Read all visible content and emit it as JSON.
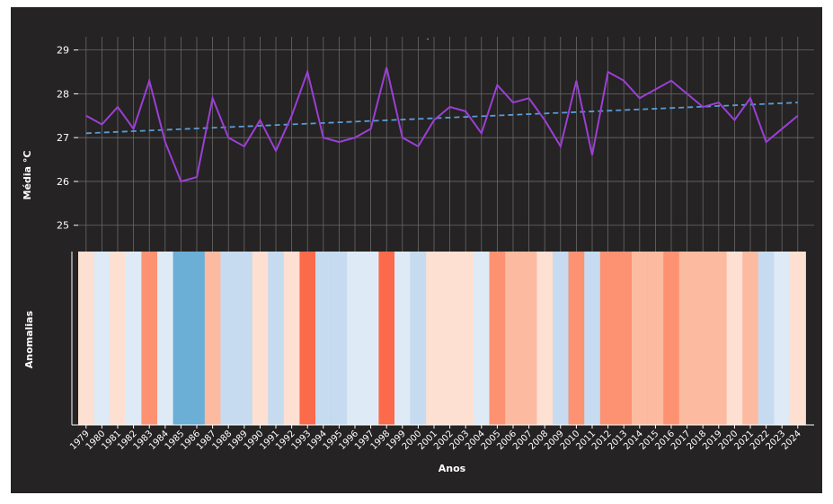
{
  "chart_data": {
    "type": "line",
    "title": ".",
    "y_label": "Média °C",
    "stripes_label": "Anomalias",
    "x_label": "Anos",
    "categories": [
      "1979",
      "1980",
      "1981",
      "1982",
      "1983",
      "1984",
      "1985",
      "1986",
      "1987",
      "1988",
      "1989",
      "1990",
      "1991",
      "1992",
      "1993",
      "1994",
      "1995",
      "1996",
      "1997",
      "1998",
      "1999",
      "2000",
      "2001",
      "2002",
      "2003",
      "2004",
      "2005",
      "2006",
      "2007",
      "2008",
      "2009",
      "2010",
      "2011",
      "2012",
      "2013",
      "2014",
      "2015",
      "2016",
      "2017",
      "2018",
      "2019",
      "2020",
      "2021",
      "2022",
      "2023",
      "2024"
    ],
    "series": [
      {
        "name": "Média",
        "color": "#9b3fd6",
        "values": [
          27.5,
          27.3,
          27.7,
          27.2,
          28.3,
          26.9,
          26.0,
          26.1,
          27.9,
          27.0,
          26.8,
          27.4,
          26.7,
          27.5,
          28.5,
          27.0,
          26.9,
          27.0,
          27.2,
          28.6,
          27.0,
          26.8,
          27.4,
          27.7,
          27.6,
          27.1,
          28.2,
          27.8,
          27.9,
          27.4,
          26.8,
          28.3,
          26.6,
          28.5,
          28.3,
          27.9,
          28.1,
          28.3,
          28.0,
          27.7,
          27.8,
          27.4,
          27.9,
          26.9,
          27.2,
          27.5
        ]
      }
    ],
    "trend": {
      "color": "#5b9bd5",
      "values": [
        27.1,
        27.8
      ]
    },
    "ylim": [
      24.4,
      29.3
    ],
    "yticks": [
      25,
      26,
      27,
      28,
      29
    ],
    "grid": true,
    "stripe_colors": [
      "#fee0d2",
      "#deebf7",
      "#fee0d2",
      "#deebf7",
      "#fc9272",
      "#deebf7",
      "#6baed6",
      "#6baed6",
      "#fcbba1",
      "#c6dbef",
      "#c6dbef",
      "#fee0d2",
      "#c6dbef",
      "#fee0d2",
      "#fb6a4a",
      "#c6dbef",
      "#c6dbef",
      "#deebf7",
      "#deebf7",
      "#fb6a4a",
      "#deebf7",
      "#c6dbef",
      "#fee0d2",
      "#fee0d2",
      "#fee0d2",
      "#deebf7",
      "#fc9272",
      "#fcbba1",
      "#fcbba1",
      "#fee0d2",
      "#c6dbef",
      "#fc9272",
      "#c6dbef",
      "#fc9272",
      "#fc9272",
      "#fcbba1",
      "#fcbba1",
      "#fc9272",
      "#fcbba1",
      "#fcbba1",
      "#fcbba1",
      "#fee0d2",
      "#fcbba1",
      "#c6dbef",
      "#deebf7",
      "#fee0d2"
    ]
  }
}
